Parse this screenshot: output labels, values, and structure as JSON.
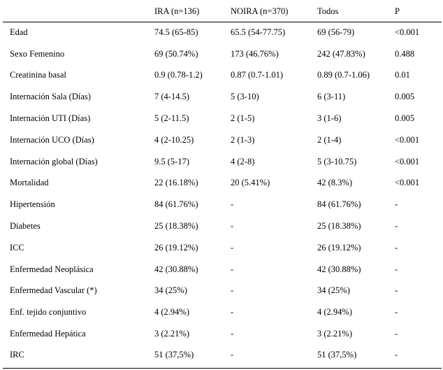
{
  "table": {
    "headers": [
      "",
      "IRA (n=136)",
      "NOIRA (n=370)",
      "Todos",
      "P"
    ],
    "rows": [
      [
        "Edad",
        "74.5 (65-85)",
        "65.5 (54-77.75)",
        "69 (56-79)",
        "<0.001"
      ],
      [
        "Sexo Femenino",
        "69 (50.74%)",
        "173 (46.76%)",
        "242 (47.83%)",
        "0.488"
      ],
      [
        "Creatinina basal",
        "0.9 (0.78-1.2)",
        "0.87 (0.7-1.01)",
        "0.89 (0.7-1.06)",
        "0.01"
      ],
      [
        "Internación Sala (Días)",
        "7 (4-14.5)",
        "5 (3-10)",
        "6 (3-11)",
        "0.005"
      ],
      [
        "Internación UTI (Días)",
        "5 (2-11.5)",
        "2 (1-5)",
        "3 (1-6)",
        "0.005"
      ],
      [
        "Internación UCO (Días)",
        "4 (2-10.25)",
        "2 (1-3)",
        "2 (1-4)",
        "<0.001"
      ],
      [
        "Internación global (Días)",
        "9.5 (5-17)",
        "4 (2-8)",
        "5 (3-10.75)",
        "<0.001"
      ],
      [
        "Mortalidad",
        "22 (16.18%)",
        "20 (5.41%)",
        "42 (8.3%)",
        "<0.001"
      ],
      [
        "Hipertensión",
        "84 (61.76%)",
        "-",
        "84 (61.76%)",
        "-"
      ],
      [
        "Diabetes",
        "25 (18.38%)",
        "-",
        "25 (18.38%)",
        "-"
      ],
      [
        "ICC",
        "26 (19.12%)",
        "-",
        "26 (19.12%)",
        "-"
      ],
      [
        "Enfermedad Neoplásica",
        "42 (30.88%)",
        "-",
        "42 (30.88%)",
        "-"
      ],
      [
        "Enfermedad Vascular (*)",
        "34 (25%)",
        "-",
        "34 (25%)",
        "-"
      ],
      [
        "Enf. tejido conjuntivo",
        "4 (2.94%)",
        "-",
        "4 (2.94%)",
        "-"
      ],
      [
        "Enfermedad Hepática",
        "3 (2.21%)",
        "-",
        "3 (2.21%)",
        "-"
      ],
      [
        "IRC",
        "51 (37,5%)",
        "-",
        "51 (37,5%)",
        "-"
      ]
    ]
  }
}
